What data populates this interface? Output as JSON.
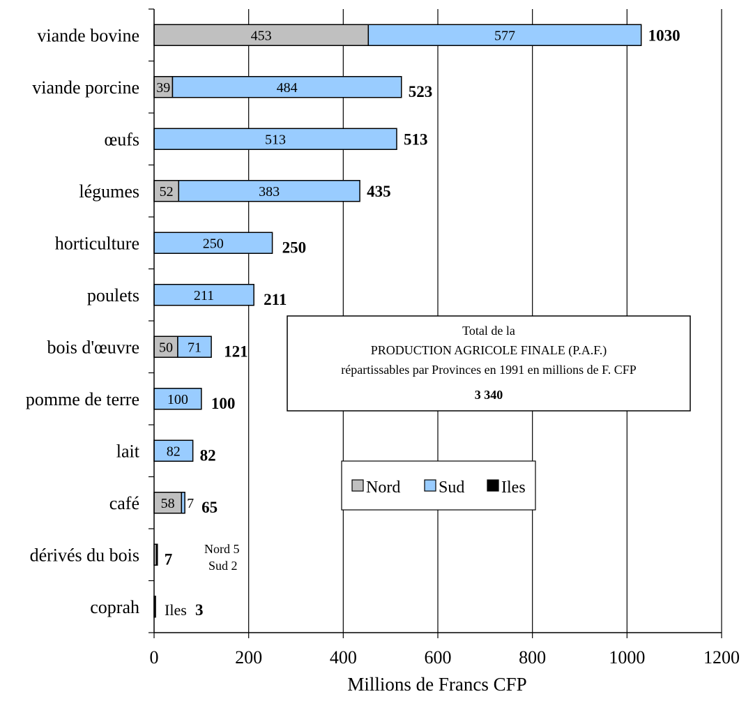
{
  "chart_data": {
    "type": "bar",
    "orientation": "horizontal",
    "stacked": true,
    "categories": [
      "viande bovine",
      "viande porcine",
      "œufs",
      "légumes",
      "horticulture",
      "poulets",
      "bois d'œuvre",
      "pomme de terre",
      "lait",
      "café",
      "dérivés du bois",
      "coprah"
    ],
    "series": [
      {
        "name": "Nord",
        "color": "#c0c0c0",
        "values": [
          453,
          39,
          0,
          52,
          0,
          0,
          50,
          0,
          0,
          58,
          5,
          0
        ]
      },
      {
        "name": "Sud",
        "color": "#99ccff",
        "values": [
          577,
          484,
          513,
          383,
          250,
          211,
          71,
          100,
          82,
          7,
          2,
          0
        ]
      },
      {
        "name": "Iles",
        "color": "#000000",
        "values": [
          0,
          0,
          0,
          0,
          0,
          0,
          0,
          0,
          0,
          0,
          0,
          3
        ]
      }
    ],
    "segment_labels": [
      [
        "453",
        "577"
      ],
      [
        "39",
        "484"
      ],
      [
        "513"
      ],
      [
        "52",
        "383"
      ],
      [
        "250"
      ],
      [
        "211"
      ],
      [
        "50",
        "71"
      ],
      [
        "100"
      ],
      [
        "82"
      ],
      [
        "58",
        "7"
      ],
      [],
      []
    ],
    "totals": [
      "1030",
      "523",
      "513",
      "435",
      "250",
      "211",
      "121",
      "100",
      "82",
      "65",
      "7",
      "3"
    ],
    "xlabel": "Millions de Francs CFP",
    "xlim": [
      0,
      1200
    ],
    "xticks": [
      "0",
      "200",
      "400",
      "600",
      "800",
      "1000",
      "1200"
    ],
    "grid": true,
    "legend_position": "center-right",
    "notes": {
      "derives_nord": "Nord 5",
      "derives_sud": "Sud 2",
      "coprah_label": "Iles",
      "coprah_value": "3"
    },
    "info_box": {
      "line1": "Total de la",
      "line2": "PRODUCTION AGRICOLE FINALE (P.A.F.)",
      "line3": "répartissables par Provinces en 1991 en millions de F. CFP",
      "total": "3 340"
    }
  }
}
